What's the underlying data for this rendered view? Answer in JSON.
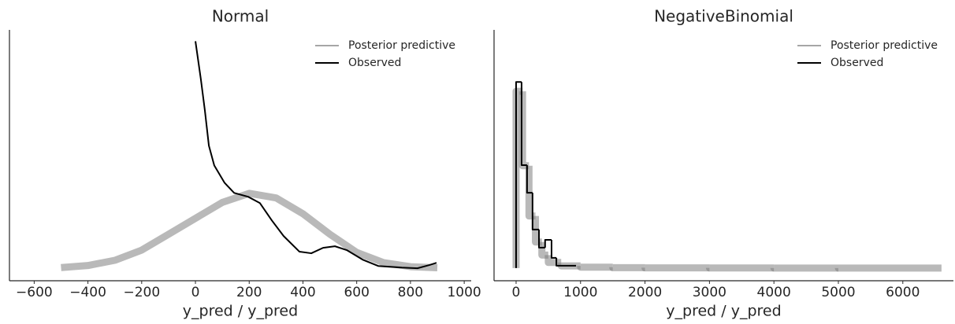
{
  "chart_data": [
    {
      "type": "line",
      "title": "Normal",
      "xlabel": "y_pred / y_pred",
      "xlim": [
        -692,
        1026
      ],
      "ylim": [
        -0.055,
        1.05
      ],
      "xticks": [
        {
          "value": -600,
          "label": "−600"
        },
        {
          "value": -400,
          "label": "−400"
        },
        {
          "value": -200,
          "label": "−200"
        },
        0,
        200,
        400,
        600,
        800,
        1000
      ],
      "legend": "upper right",
      "series": [
        {
          "name": "Posterior predictive",
          "color": "#808080",
          "x": [
            -500,
            -400,
            -300,
            -200,
            -100,
            0,
            100,
            200,
            300,
            400,
            500,
            600,
            700,
            800,
            900
          ],
          "values": [
            0.003,
            0.012,
            0.035,
            0.08,
            0.15,
            0.22,
            0.29,
            0.33,
            0.31,
            0.24,
            0.15,
            0.07,
            0.025,
            0.007,
            0.002
          ]
        },
        {
          "name": "Observed",
          "color": "#000000",
          "x": [
            0,
            20,
            35,
            50,
            70,
            108,
            144,
            196,
            240,
            284,
            328,
            387,
            431,
            475,
            519,
            563,
            622,
            680,
            768,
            826,
            870,
            897
          ],
          "values": [
            1.0,
            0.834,
            0.696,
            0.54,
            0.453,
            0.377,
            0.332,
            0.315,
            0.287,
            0.211,
            0.142,
            0.073,
            0.066,
            0.09,
            0.097,
            0.08,
            0.038,
            0.01,
            0.003,
            0.0,
            0.014,
            0.024
          ]
        }
      ]
    },
    {
      "type": "step",
      "title": "NegativeBinomial",
      "xlabel": "y_pred / y_pred",
      "xlim": [
        -342,
        6785
      ],
      "ylim": [
        -0.068,
        1.28
      ],
      "xticks": [
        0,
        1000,
        2000,
        3000,
        4000,
        5000,
        6000
      ],
      "legend": "upper right",
      "series": [
        {
          "name": "Posterior predictive",
          "color": "#808080",
          "bins": [
            0,
            100,
            200,
            300,
            400,
            500,
            700,
            1000,
            1500,
            2000,
            3000,
            4000,
            5000,
            6600
          ],
          "values": [
            0.95,
            0.55,
            0.28,
            0.14,
            0.07,
            0.03,
            0.012,
            0.005,
            0.002,
            0.001,
            0.0005,
            0.0002,
            0.0001
          ]
        },
        {
          "name": "Observed",
          "color": "#000000",
          "bins": [
            0,
            85,
            170,
            255,
            355,
            450,
            550,
            625,
            930
          ],
          "values": [
            1.0,
            0.553,
            0.405,
            0.207,
            0.11,
            0.152,
            0.055,
            0.013
          ]
        }
      ]
    }
  ]
}
